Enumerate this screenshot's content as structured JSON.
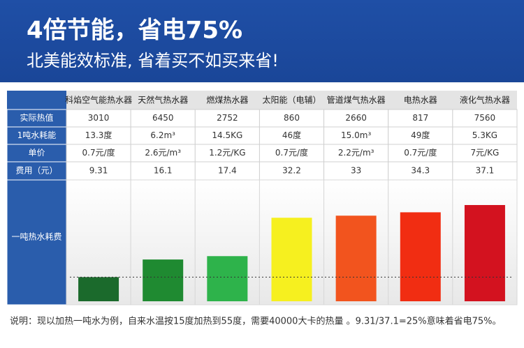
{
  "header": {
    "title": "4倍节能，省电75%",
    "subtitle": "北美能效标准, 省着买不如买来省!"
  },
  "table": {
    "columns": [
      "科焰空气能热水器",
      "天然气热水器",
      "燃煤热水器",
      "太阳能（电辅）",
      "管道煤气热水器",
      "电热水器",
      "液化气热水器"
    ],
    "rows": [
      {
        "label": "实际热值",
        "cells": [
          3010,
          6450,
          2752,
          860,
          2660,
          817,
          7560
        ]
      },
      {
        "label": "1吨水耗能",
        "cells": [
          "13.3度",
          "6.2m³",
          "14.5KG",
          "46度",
          "15.0m³",
          "49度",
          "5.3KG"
        ]
      },
      {
        "label": "单价",
        "cells": [
          "0.7元/度",
          "2.6元/m³",
          "1.2元/KG",
          "0.7元/度",
          "2.2元/m³",
          "0.7元/度",
          "7元/KG"
        ]
      },
      {
        "label": "费用（元）",
        "cells": [
          9.31,
          16.1,
          17.4,
          32.2,
          33,
          34.3,
          37.1
        ]
      }
    ],
    "chart_row": {
      "label": "一吨热水耗费",
      "colors": [
        "#1b6a2c",
        "#1f8a31",
        "#2eb34b",
        "#f6f01f",
        "#f2541e",
        "#f12d12",
        "#d3121f"
      ]
    }
  },
  "footnote": "说明：现以加热一吨水为例，自来水温按15度加热到55度，需要40000大卡的热量 。9.31/37.1=25%意味着省电75%。"
}
